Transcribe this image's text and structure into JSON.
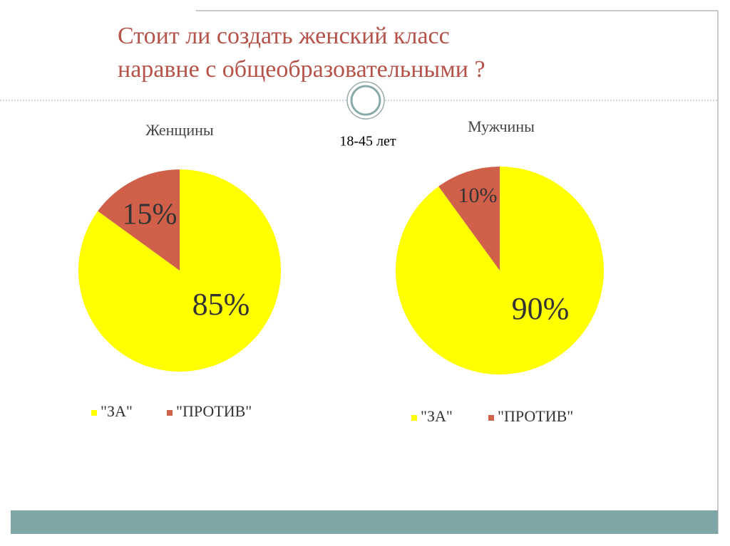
{
  "title": [
    "Стоит ли создать женский класс",
    "наравне с общеобразовательными ?"
  ],
  "subtitle": "18-45 лет",
  "chart_data": [
    {
      "type": "pie",
      "title": "Женщины",
      "categories": [
        "\"ЗА\"",
        "\"ПРОТИВ\""
      ],
      "values": [
        85,
        15
      ],
      "value_labels": [
        "85%",
        "15%"
      ],
      "colors": [
        "#ffff00",
        "#d0604a"
      ]
    },
    {
      "type": "pie",
      "title": "Мужчины",
      "categories": [
        "\"ЗА\"",
        "\"ПРОТИВ\""
      ],
      "values": [
        90,
        10
      ],
      "value_labels": [
        "90%",
        "10%"
      ],
      "colors": [
        "#ffff00",
        "#d0604a"
      ]
    }
  ]
}
